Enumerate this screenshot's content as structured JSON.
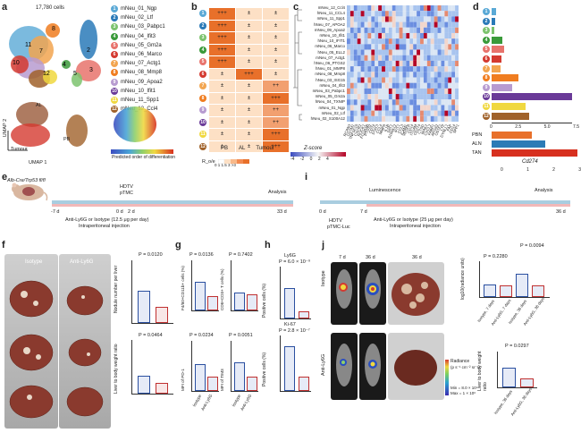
{
  "panel_a": {
    "letter": "a",
    "cell_count": "17,780 cells",
    "umap2": "UMAP 2",
    "umap1": "UMAP 1",
    "tumour": "Tumour",
    "al": "AL",
    "pb": "PB",
    "order_label": "Predicted order of differentiation",
    "clusters": [
      {
        "n": "1",
        "name": "mNeu_01_Ngp",
        "color": "#5aa9d6"
      },
      {
        "n": "2",
        "name": "mNeu_02_Ltf",
        "color": "#2a7ab8"
      },
      {
        "n": "3",
        "name": "mNeu_03_Pabpc1",
        "color": "#7cc36e"
      },
      {
        "n": "4",
        "name": "mNeu_04_Ifit3",
        "color": "#3a9a3a"
      },
      {
        "n": "5",
        "name": "mNeu_05_Gm2a",
        "color": "#e8736c"
      },
      {
        "n": "6",
        "name": "mNeu_06_Marco",
        "color": "#d43a30"
      },
      {
        "n": "7",
        "name": "mNeu_07_Actg1",
        "color": "#f2a550"
      },
      {
        "n": "8",
        "name": "mNeu_08_Mmp8",
        "color": "#f07d20"
      },
      {
        "n": "9",
        "name": "mNeu_09_Apoa2",
        "color": "#b79bd0"
      },
      {
        "n": "10",
        "name": "mNeu_10_Ifit1",
        "color": "#6a3a98"
      },
      {
        "n": "11",
        "name": "mNeu_11_Spp1",
        "color": "#f0d840"
      },
      {
        "n": "12",
        "name": "mNeu_12_Ccl4",
        "color": "#a0622a"
      }
    ]
  },
  "panel_b": {
    "letter": "b",
    "cols": [
      "PB",
      "AL",
      "Tumour"
    ],
    "rows": [
      [
        "+++",
        "±",
        "±"
      ],
      [
        "+++",
        "±",
        "±"
      ],
      [
        "+++",
        "±",
        "±"
      ],
      [
        "+++",
        "±",
        "±"
      ],
      [
        "+++",
        "±",
        "±"
      ],
      [
        "±",
        "+++",
        "±"
      ],
      [
        "±",
        "±",
        "++"
      ],
      [
        "±",
        "±",
        "+++"
      ],
      [
        "±",
        "±",
        "++"
      ],
      [
        "±",
        "±",
        "++"
      ],
      [
        "±",
        "±",
        "+++"
      ],
      [
        "±",
        "±",
        "+++"
      ]
    ],
    "roe_label": "R_o/e",
    "roe_scale": "0 1 1.5 3 >3"
  },
  "panel_c": {
    "letter": "c",
    "rows": [
      "mNeu_12_Ccl4",
      "hNeu_11_CCL4",
      "mNeu_11_Spp1",
      "hNeu_07_APOA2",
      "mNeu_09_Apoa2",
      "mNeu_10_Ifit1",
      "hNeu_10_IFIT1",
      "mNeu_06_Marco",
      "hNeu_05_ELL2",
      "mNeu_07_Actg1",
      "hNeu_06_PTGS2",
      "hNeu_01_MMP8",
      "mNeu_08_Mmp8",
      "hNeu_03_ISG15",
      "mNeu_04_Ifit3",
      "mNeu_03_Pabpc1",
      "mNeu_05_Gm2a",
      "hNeu_04_TXNIP",
      "mNeu_01_Ngp",
      "mNeu_02_Ltf",
      "hNeu_02_S100A12"
    ],
    "cols": [
      "RCAN3",
      "GSTM1",
      "TNFSF10",
      "CXCR2",
      "ROCK1",
      "FCGR3B",
      "PTGS2",
      "CD74",
      "STAT3",
      "CCL4",
      "MMP8",
      "IL1B",
      "SAT1",
      "S100A12",
      "IFIT1",
      "CCL3",
      "ICAM1",
      "VEGFA",
      "CD14",
      "ITGAM",
      "CD274",
      "CTSD",
      "IRAK2",
      "CXCL2",
      "FABP1",
      "APOA2",
      "OSTF1",
      "LYZ",
      "DYNLL1",
      "FAP",
      "CD14",
      "SPP1"
    ],
    "zscore_label": "Z-score",
    "zscore_ticks": "-4 -2 0 2 4"
  },
  "panel_d": {
    "letter": "d",
    "xlabel": "Cd274",
    "xticks": [
      "0",
      "2.5",
      "5.0",
      "7.5"
    ],
    "xticks2": [
      "0",
      "1",
      "2",
      "3"
    ],
    "values": [
      0.5,
      0.4,
      0.3,
      1.1,
      1.3,
      1.0,
      0.9,
      2.8,
      2.2,
      8.5,
      3.6,
      4.0
    ],
    "tissue": [
      {
        "name": "PBN",
        "value": 1.5,
        "color": "#e8702a"
      },
      {
        "name": "ALN",
        "value": 2.0,
        "color": "#2c7bb6"
      },
      {
        "name": "TAN",
        "value": 3.2,
        "color": "#d7301f"
      }
    ]
  },
  "panel_e": {
    "letter": "e",
    "mouse": "Alb-Cre/Trp53 fl/fl",
    "hdtv": "HDTV",
    "ptmc": "pTMC",
    "analysis": "Analysis",
    "days": [
      "-7 d",
      "0 d",
      "2 d",
      "33 d"
    ],
    "treat": "Anti-Ly6G or Isotype (12.5 μg per day)",
    "route": "Intraperitoneal injection"
  },
  "panel_i": {
    "letter": "i",
    "lum": "Luminescence",
    "analysis": "Analysis",
    "days": [
      "0 d",
      "7 d",
      "36 d"
    ],
    "hdtv": "HDTV",
    "ptmc": "pTMC-Luc",
    "treat": "Anti-Ly6G or Isotype (25 μg per day)",
    "route": "Intraperitoneal injection"
  },
  "panel_f": {
    "letter": "f",
    "iso": "Isotype",
    "anti": "Anti-Ly6G",
    "p1": "P = 0.0120",
    "p2": "P = 0.0464",
    "y1": "Nodule number per liver",
    "y2": "Liver to body weight ratio"
  },
  "panel_g": {
    "letter": "g",
    "p": [
      "P = 0.0136",
      "P = 0.7402",
      "P = 0.0234",
      "P = 0.0051"
    ],
    "y": [
      "F4/80+CD11b+ cells (%)",
      "CD8+CD3+ T cells (%)",
      "MFI of PD-1",
      "MFI of TIM3"
    ],
    "x": [
      "Isotype",
      "Anti-Ly6G"
    ]
  },
  "panel_h": {
    "letter": "h",
    "t1": "Ly6G",
    "t2": "Ki-67",
    "p1": "P = 6.0 × 10⁻⁹",
    "p2": "P = 2.8 × 10⁻⁷",
    "y": "Positive cells (%)"
  },
  "panel_j": {
    "letter": "j",
    "d7": "7 d",
    "d36a": "36 d",
    "d36b": "36 d",
    "iso": "Isotype",
    "anti": "Anti-Ly6G",
    "rad": "Radiance",
    "rad_units": "(p s⁻¹ cm⁻² sr⁻¹)",
    "rad_min": "Min = 8.0 × 10⁴",
    "rad_max": "Max = 1 × 10⁶",
    "p1": "P = 0.2280",
    "p2": "P = 0.0094",
    "p3": "P = 0.0297",
    "y1": "log10(radiance units)",
    "y2": "Liver to body weight ratio",
    "xl": [
      "Isotype, 7 days",
      "Anti-Ly6G, 7 days",
      "Isotype, 36 days",
      "Anti-Ly6G, 36 days"
    ],
    "xl2": [
      "Isotype, 36 days",
      "Anti-Ly6G, 36 days"
    ]
  }
}
